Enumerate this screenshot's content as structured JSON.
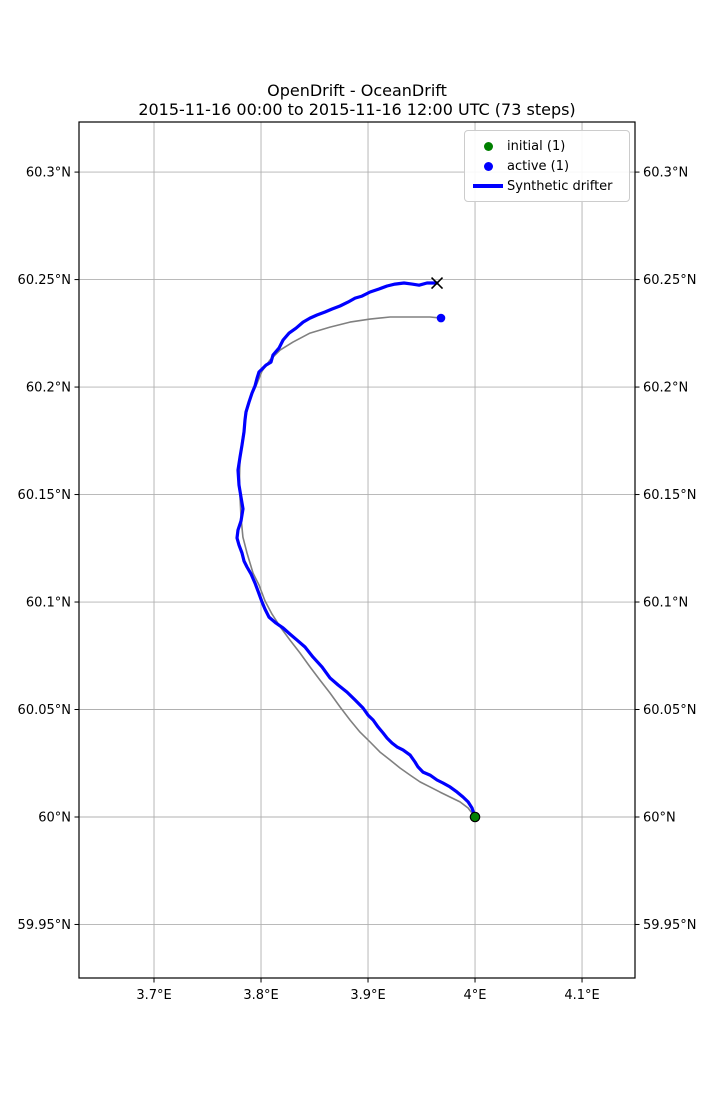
{
  "figure": {
    "title_line1": "OpenDrift - OceanDrift",
    "title_line2": "2015-11-16 00:00 to 2015-11-16 12:00 UTC (73 steps)"
  },
  "legend": {
    "items": [
      {
        "label": "initial (1)",
        "marker": "dot",
        "color": "#008000"
      },
      {
        "label": "active (1)",
        "marker": "dot",
        "color": "#0000ff"
      },
      {
        "label": "Synthetic drifter",
        "marker": "line",
        "color": "#0000ff"
      }
    ]
  },
  "chart_data": {
    "type": "line",
    "title": "OpenDrift - OceanDrift",
    "subtitle": "2015-11-16 00:00 to 2015-11-16 12:00 UTC (73 steps)",
    "projection": "mercator-like map (lon/lat)",
    "xlabel": "",
    "ylabel": "",
    "xlim": [
      3.6299,
      4.1495
    ],
    "ylim": [
      59.9251,
      60.3233
    ],
    "grid": true,
    "grid_color": "#b0b0b0",
    "frame_color": "#000000",
    "x_ticks": {
      "values": [
        3.7,
        3.8,
        3.9,
        4.0,
        4.1
      ],
      "labels": [
        "3.7°E",
        "3.8°E",
        "3.9°E",
        "4°E",
        "4.1°E"
      ]
    },
    "y_ticks": {
      "values": [
        60.3,
        60.25,
        60.2,
        60.15,
        60.1,
        60.05,
        60.0,
        59.95
      ],
      "labels": [
        "60.3°N",
        "60.25°N",
        "60.2°N",
        "60.15°N",
        "60.1°N",
        "60.05°N",
        "60°N",
        "59.95°N"
      ],
      "sides": [
        "left",
        "right"
      ]
    },
    "legend_position": "upper right",
    "series": [
      {
        "name": "model trajectory",
        "color": "#808080",
        "line_width": 1.6,
        "points": [
          [
            4.0,
            60.0
          ],
          [
            3.9935,
            60.0042
          ],
          [
            3.986,
            60.007
          ],
          [
            3.9766,
            60.0093
          ],
          [
            3.9673,
            60.0116
          ],
          [
            3.9579,
            60.014
          ],
          [
            3.9486,
            60.0163
          ],
          [
            3.9393,
            60.0195
          ],
          [
            3.9299,
            60.0228
          ],
          [
            3.9206,
            60.0265
          ],
          [
            3.9112,
            60.0302
          ],
          [
            3.9019,
            60.0349
          ],
          [
            3.8925,
            60.0395
          ],
          [
            3.8832,
            60.0451
          ],
          [
            3.8738,
            60.0512
          ],
          [
            3.8645,
            60.0577
          ],
          [
            3.8551,
            60.0637
          ],
          [
            3.8458,
            60.0698
          ],
          [
            3.8364,
            60.0763
          ],
          [
            3.8271,
            60.0823
          ],
          [
            3.8187,
            60.0879
          ],
          [
            3.8103,
            60.0944
          ],
          [
            3.8037,
            60.1005
          ],
          [
            3.7981,
            60.1079
          ],
          [
            3.7925,
            60.1135
          ],
          [
            3.7869,
            60.1228
          ],
          [
            3.7831,
            60.1302
          ],
          [
            3.7813,
            60.1395
          ],
          [
            3.7804,
            60.1488
          ],
          [
            3.7799,
            60.1576
          ],
          [
            3.7804,
            60.166
          ],
          [
            3.782,
            60.1744
          ],
          [
            3.785,
            60.1842
          ],
          [
            3.7879,
            60.1916
          ],
          [
            3.7916,
            60.1967
          ],
          [
            3.7953,
            60.2005
          ],
          [
            3.8009,
            60.2074
          ],
          [
            3.8084,
            60.2126
          ],
          [
            3.8178,
            60.2172
          ],
          [
            3.8299,
            60.2209
          ],
          [
            3.8458,
            60.2251
          ],
          [
            3.8645,
            60.2279
          ],
          [
            3.8832,
            60.2302
          ],
          [
            3.9019,
            60.2316
          ],
          [
            3.9206,
            60.2326
          ],
          [
            3.9393,
            60.2326
          ],
          [
            3.9579,
            60.2326
          ],
          [
            3.9682,
            60.2321
          ]
        ]
      },
      {
        "name": "Synthetic drifter",
        "color": "#0000ff",
        "line_width": 3.2,
        "points": [
          [
            4.0,
            60.0
          ],
          [
            3.9972,
            60.0042
          ],
          [
            3.9935,
            60.007
          ],
          [
            3.9888,
            60.0093
          ],
          [
            3.9832,
            60.0116
          ],
          [
            3.9766,
            60.014
          ],
          [
            3.9701,
            60.0158
          ],
          [
            3.9645,
            60.0172
          ],
          [
            3.9579,
            60.0195
          ],
          [
            3.9514,
            60.0209
          ],
          [
            3.9467,
            60.0233
          ],
          [
            3.9439,
            60.0256
          ],
          [
            3.9393,
            60.0288
          ],
          [
            3.9327,
            60.0312
          ],
          [
            3.9271,
            60.0326
          ],
          [
            3.9224,
            60.0344
          ],
          [
            3.9178,
            60.0367
          ],
          [
            3.914,
            60.0391
          ],
          [
            3.9093,
            60.0419
          ],
          [
            3.9047,
            60.0451
          ],
          [
            3.9,
            60.0474
          ],
          [
            3.8953,
            60.0507
          ],
          [
            3.8879,
            60.0544
          ],
          [
            3.8804,
            60.0581
          ],
          [
            3.872,
            60.0614
          ],
          [
            3.8645,
            60.0647
          ],
          [
            3.857,
            60.0698
          ],
          [
            3.8486,
            60.0744
          ],
          [
            3.8411,
            60.0791
          ],
          [
            3.8336,
            60.0823
          ],
          [
            3.8271,
            60.0851
          ],
          [
            3.8206,
            60.0879
          ],
          [
            3.814,
            60.0902
          ],
          [
            3.8075,
            60.093
          ],
          [
            3.8037,
            60.0967
          ],
          [
            3.8009,
            60.1
          ],
          [
            3.7972,
            60.1051
          ],
          [
            3.7944,
            60.1088
          ],
          [
            3.7907,
            60.113
          ],
          [
            3.7869,
            60.1163
          ],
          [
            3.7841,
            60.1191
          ],
          [
            3.7822,
            60.1228
          ],
          [
            3.7794,
            60.1265
          ],
          [
            3.7776,
            60.1298
          ],
          [
            3.7785,
            60.1335
          ],
          [
            3.7813,
            60.1377
          ],
          [
            3.7832,
            60.1433
          ],
          [
            3.7813,
            60.1488
          ],
          [
            3.7794,
            60.1544
          ],
          [
            3.7785,
            60.1614
          ],
          [
            3.7804,
            60.1674
          ],
          [
            3.7822,
            60.173
          ],
          [
            3.7841,
            60.1791
          ],
          [
            3.785,
            60.1847
          ],
          [
            3.786,
            60.1884
          ],
          [
            3.7888,
            60.193
          ],
          [
            3.7916,
            60.1972
          ],
          [
            3.7944,
            60.2005
          ],
          [
            3.7963,
            60.2042
          ],
          [
            3.7981,
            60.207
          ],
          [
            3.8019,
            60.2088
          ],
          [
            3.8047,
            60.2102
          ],
          [
            3.8093,
            60.2116
          ],
          [
            3.8112,
            60.2149
          ],
          [
            3.8168,
            60.2181
          ],
          [
            3.8206,
            60.2219
          ],
          [
            3.8262,
            60.2251
          ],
          [
            3.8327,
            60.2274
          ],
          [
            3.8393,
            60.2302
          ],
          [
            3.8458,
            60.2321
          ],
          [
            3.8523,
            60.2335
          ],
          [
            3.8598,
            60.2349
          ],
          [
            3.8664,
            60.2363
          ],
          [
            3.8738,
            60.2377
          ],
          [
            3.8813,
            60.2395
          ],
          [
            3.8879,
            60.2414
          ],
          [
            3.8944,
            60.2423
          ],
          [
            3.9019,
            60.2442
          ],
          [
            3.9103,
            60.2456
          ],
          [
            3.9178,
            60.247
          ],
          [
            3.9252,
            60.2479
          ],
          [
            3.9336,
            60.2484
          ],
          [
            3.9411,
            60.2479
          ],
          [
            3.9477,
            60.2474
          ],
          [
            3.9551,
            60.2484
          ],
          [
            3.9617,
            60.2484
          ],
          [
            3.9645,
            60.2484
          ]
        ]
      }
    ],
    "markers": [
      {
        "name": "initial",
        "type": "circle",
        "color": "#008000",
        "edge_color": "#000000",
        "lon": 4.0,
        "lat": 60.0,
        "size": 11
      },
      {
        "name": "active",
        "type": "circle",
        "color": "#0000ff",
        "edge_color": "#0000ff",
        "lon": 3.9682,
        "lat": 60.2321,
        "size": 9
      },
      {
        "name": "drifter-end",
        "type": "x",
        "color": "#000000",
        "edge_color": "#000000",
        "lon": 3.9645,
        "lat": 60.2484,
        "size": 11
      }
    ]
  }
}
